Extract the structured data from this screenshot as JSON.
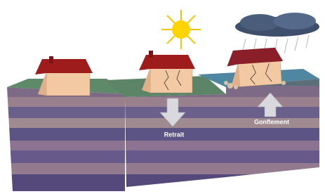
{
  "arrows": [
    {
      "label": "Retrait"
    },
    {
      "label": "Gonflement"
    }
  ]
}
